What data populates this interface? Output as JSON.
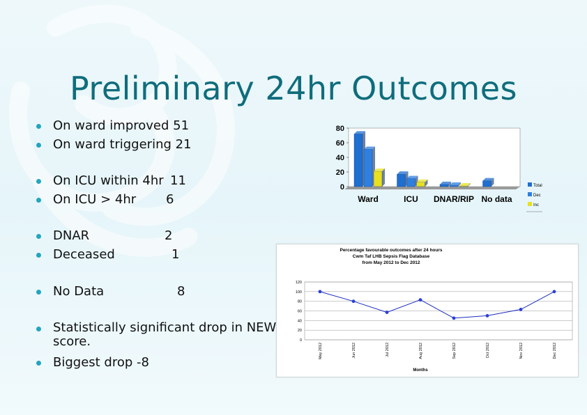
{
  "slide": {
    "title": "Preliminary 24hr Outcomes"
  },
  "bullets": [
    {
      "label": "On ward improved 51",
      "value": ""
    },
    {
      "label": "On ward triggering 21",
      "value": ""
    },
    {
      "label": "On ICU within 4hr",
      "value": "11"
    },
    {
      "label": "On ICU > 4hr",
      "value": "6"
    },
    {
      "label": "DNAR",
      "value": "2"
    },
    {
      "label": "Deceased",
      "value": "1"
    },
    {
      "label": "No Data",
      "value": "8"
    },
    {
      "label": "Statistically significant drop in NEWS score.",
      "value": ""
    },
    {
      "label": "Biggest drop -8",
      "value": ""
    }
  ],
  "chart_data": [
    {
      "type": "bar",
      "categories": [
        "Ward",
        "ICU",
        "DNAR/RIP",
        "No data"
      ],
      "series": [
        {
          "name": "Total",
          "color": "#1f6fd1",
          "values": [
            72,
            17,
            3,
            8
          ]
        },
        {
          "name": "Dec",
          "color": "#2f7fe0",
          "values": [
            51,
            11,
            2,
            0
          ]
        },
        {
          "name": "Inc",
          "color": "#e8e020",
          "values": [
            21,
            6,
            1,
            0
          ]
        }
      ],
      "ylim": [
        0,
        80
      ],
      "yticks": [
        "0",
        "20",
        "40",
        "60",
        "80"
      ],
      "legend": [
        "Total",
        "Dec",
        "Inc"
      ]
    },
    {
      "type": "line",
      "title_lines": [
        "Percentage favourable outcomes after 24 hours",
        "Cwm Taf LHB Sepsis Flag Database",
        "from May 2012 to Dec 2012"
      ],
      "categories": [
        "May 2012",
        "Jun 2012",
        "Jul 2012",
        "Aug 2012",
        "Sep 2012",
        "Oct 2012",
        "Nov 2012",
        "Dec 2012"
      ],
      "values": [
        100,
        80,
        57,
        83,
        45,
        50,
        63,
        100
      ],
      "ylim": [
        0,
        120
      ],
      "yticks": [
        "0",
        "20",
        "40",
        "60",
        "80",
        "100",
        "120"
      ],
      "xlabel": "Months",
      "color": "#1a2cc0"
    }
  ]
}
